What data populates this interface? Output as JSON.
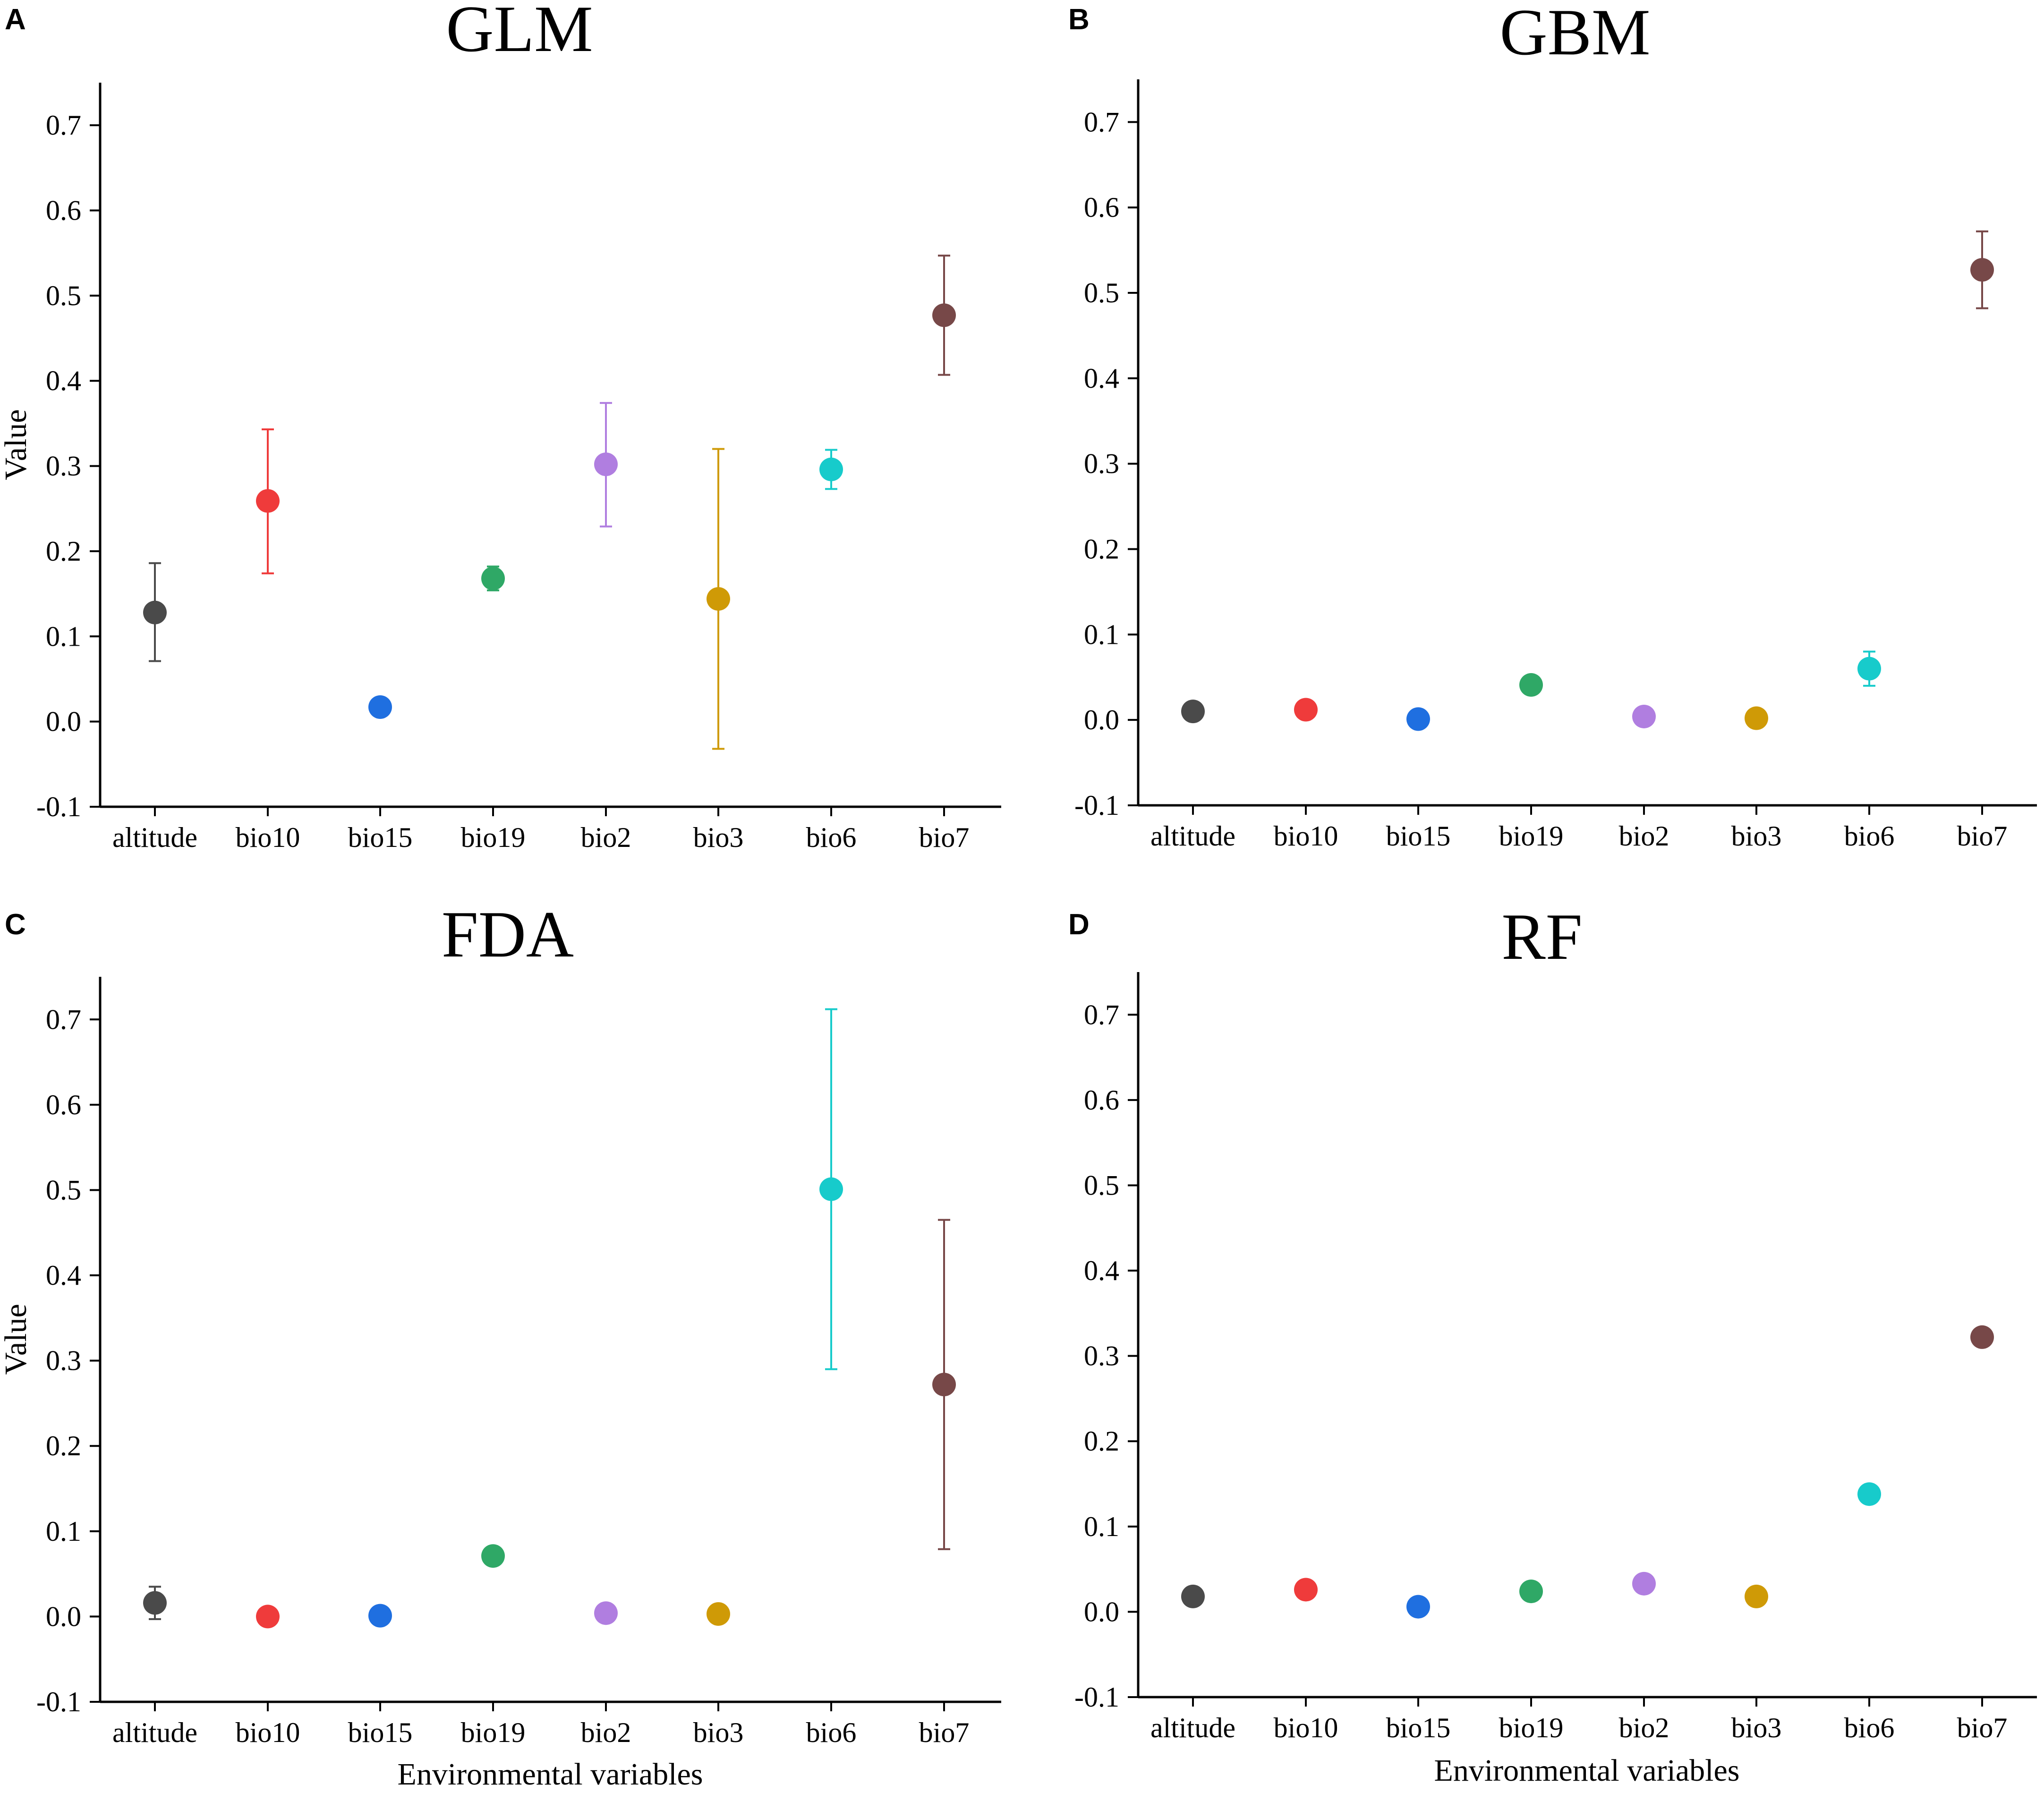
{
  "chart_data": [
    {
      "type": "scatter",
      "panel": "A",
      "title": "GLM",
      "ylabel": "Value",
      "xlabel": "",
      "ylim": [
        -0.1,
        0.75
      ],
      "yticks": [
        "-0.1",
        "0.0",
        "0.1",
        "0.2",
        "0.3",
        "0.4",
        "0.5",
        "0.6",
        "0.7"
      ],
      "categories": [
        "altitude",
        "bio10",
        "bio15",
        "bio19",
        "bio2",
        "bio3",
        "bio6",
        "bio7"
      ],
      "values": [
        0.128,
        0.259,
        0.017,
        0.168,
        0.302,
        0.144,
        0.296,
        0.477
      ],
      "err_low": [
        0.071,
        0.174,
        0.017,
        0.154,
        0.229,
        -0.032,
        0.273,
        0.407
      ],
      "err_high": [
        0.186,
        0.343,
        0.017,
        0.182,
        0.374,
        0.32,
        0.319,
        0.547
      ]
    },
    {
      "type": "scatter",
      "panel": "B",
      "title": "GBM",
      "ylabel": "",
      "xlabel": "",
      "ylim": [
        -0.1,
        0.75
      ],
      "yticks": [
        "-0.1",
        "0.0",
        "0.1",
        "0.2",
        "0.3",
        "0.4",
        "0.5",
        "0.6",
        "0.7"
      ],
      "categories": [
        "altitude",
        "bio10",
        "bio15",
        "bio19",
        "bio2",
        "bio3",
        "bio6",
        "bio7"
      ],
      "values": [
        0.01,
        0.012,
        0.001,
        0.041,
        0.004,
        0.002,
        0.06,
        0.527
      ],
      "err_low": [
        0.01,
        0.012,
        0.001,
        0.041,
        0.004,
        0.002,
        0.04,
        0.482
      ],
      "err_high": [
        0.01,
        0.012,
        0.001,
        0.041,
        0.004,
        0.002,
        0.08,
        0.572
      ]
    },
    {
      "type": "scatter",
      "panel": "C",
      "title": "FDA",
      "ylabel": "Value",
      "xlabel": "Environmental variables",
      "ylim": [
        -0.1,
        0.75
      ],
      "yticks": [
        "-0.1",
        "0.0",
        "0.1",
        "0.2",
        "0.3",
        "0.4",
        "0.5",
        "0.6",
        "0.7"
      ],
      "categories": [
        "altitude",
        "bio10",
        "bio15",
        "bio19",
        "bio2",
        "bio3",
        "bio6",
        "bio7"
      ],
      "values": [
        0.016,
        0.0,
        0.001,
        0.071,
        0.004,
        0.003,
        0.501,
        0.272
      ],
      "err_low": [
        -0.003,
        0.0,
        0.001,
        0.071,
        0.004,
        0.003,
        0.29,
        0.079
      ],
      "err_high": [
        0.035,
        0.0,
        0.001,
        0.071,
        0.004,
        0.003,
        0.712,
        0.465
      ]
    },
    {
      "type": "scatter",
      "panel": "D",
      "title": "RF",
      "ylabel": "",
      "xlabel": "Environmental variables",
      "ylim": [
        -0.1,
        0.75
      ],
      "yticks": [
        "-0.1",
        "0.0",
        "0.1",
        "0.2",
        "0.3",
        "0.4",
        "0.5",
        "0.6",
        "0.7"
      ],
      "categories": [
        "altitude",
        "bio10",
        "bio15",
        "bio19",
        "bio2",
        "bio3",
        "bio6",
        "bio7"
      ],
      "values": [
        0.018,
        0.026,
        0.006,
        0.024,
        0.033,
        0.018,
        0.138,
        0.322
      ],
      "err_low": [
        0.018,
        0.026,
        0.006,
        0.024,
        0.033,
        0.018,
        0.138,
        0.322
      ],
      "err_high": [
        0.018,
        0.026,
        0.006,
        0.024,
        0.033,
        0.018,
        0.138,
        0.322
      ]
    }
  ],
  "colors": {
    "altitude": "#4a4a4a",
    "bio10": "#ef3b3b",
    "bio15": "#1f6fe0",
    "bio19": "#2fa866",
    "bio2": "#b07ee0",
    "bio3": "#cf9a06",
    "bio6": "#17cbcb",
    "bio7": "#774848"
  }
}
